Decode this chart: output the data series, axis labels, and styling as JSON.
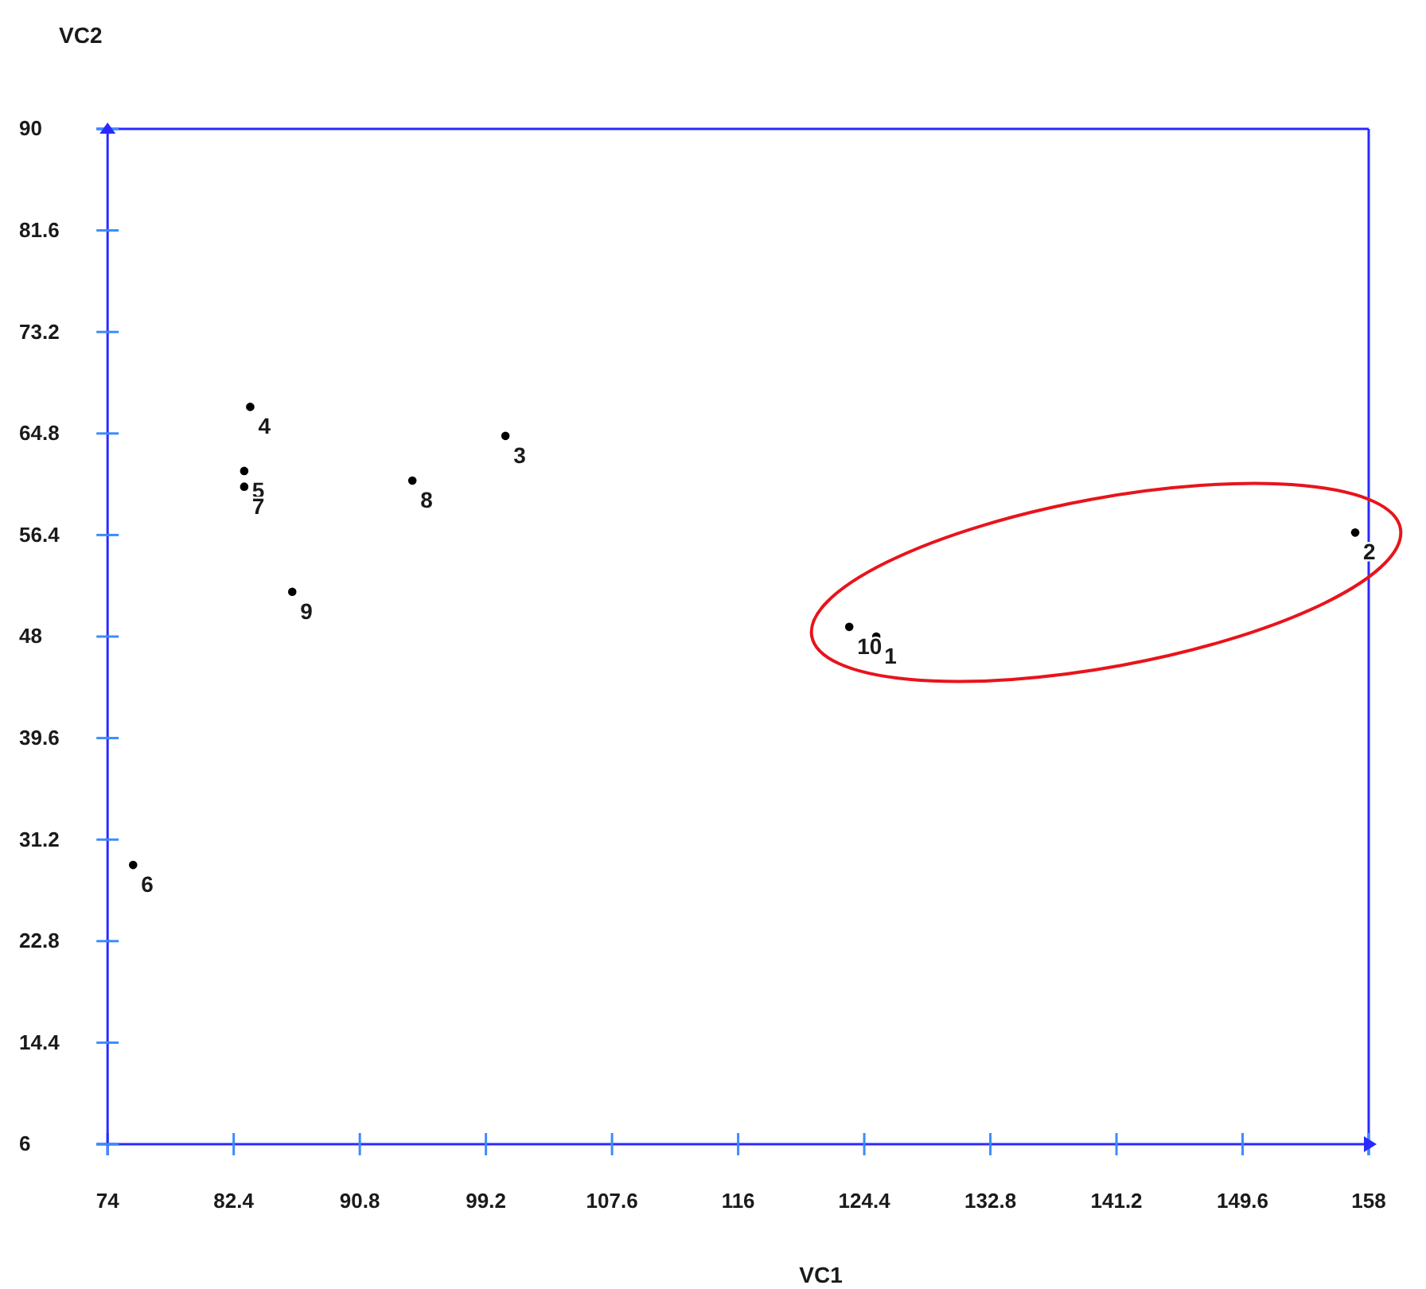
{
  "chart_data": {
    "type": "scatter",
    "xlabel": "VC1",
    "ylabel": "VC2",
    "x": [
      125.2,
      157.1,
      100.5,
      83.5,
      83.1,
      75.7,
      83.1,
      94.3,
      86.3,
      123.4
    ],
    "values": [
      48.0,
      56.6,
      64.6,
      67.0,
      61.7,
      29.1,
      60.4,
      60.9,
      51.7,
      48.8
    ],
    "annotations": [
      {
        "text": "1",
        "x": 125.2,
        "y": 48.0
      },
      {
        "text": "2",
        "x": 157.1,
        "y": 56.6
      },
      {
        "text": "3",
        "x": 100.5,
        "y": 64.6
      },
      {
        "text": "4",
        "x": 83.5,
        "y": 67.0
      },
      {
        "text": "5",
        "x": 83.1,
        "y": 61.7
      },
      {
        "text": "6",
        "x": 75.7,
        "y": 29.1
      },
      {
        "text": "7",
        "x": 83.1,
        "y": 60.4
      },
      {
        "text": "8",
        "x": 94.3,
        "y": 60.9
      },
      {
        "text": "9",
        "x": 86.3,
        "y": 51.7
      },
      {
        "text": "10",
        "x": 123.4,
        "y": 48.8
      }
    ],
    "color": "#000000",
    "marker": "circle",
    "xlim": [
      74,
      158
    ],
    "xticks": [
      74,
      82.4,
      90.8,
      99.2,
      107.6,
      116,
      124.4,
      132.8,
      141.2,
      149.6,
      158
    ],
    "ylim": [
      6,
      90
    ],
    "yticks": [
      6,
      14.4,
      22.8,
      31.2,
      39.6,
      48,
      56.4,
      64.8,
      73.2,
      81.6,
      90
    ]
  }
}
